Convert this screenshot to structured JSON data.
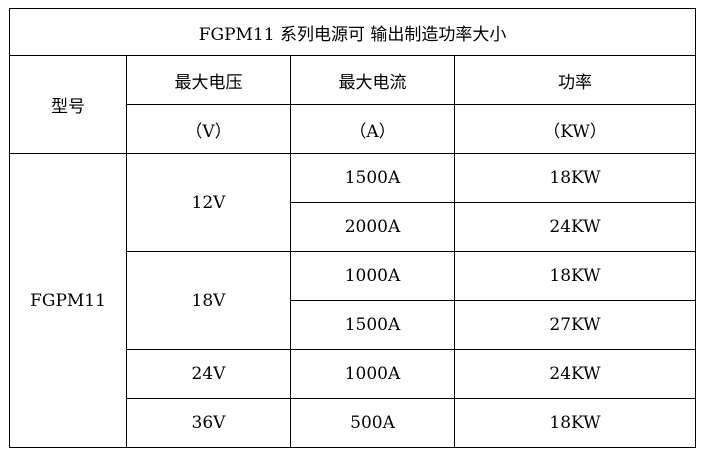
{
  "table": {
    "title": "FGPM11 系列电源可 输出制造功率大小",
    "headers": {
      "model": "型号",
      "voltage": "最大电压",
      "current": "最大电流",
      "power": "功率"
    },
    "units": {
      "voltage": "（V）",
      "current": "（A）",
      "power": "（KW）"
    },
    "model": "FGPM11",
    "rows": [
      {
        "voltage": "12V",
        "current": "1500A",
        "power": "18KW"
      },
      {
        "voltage": "",
        "current": "2000A",
        "power": "24KW"
      },
      {
        "voltage": "18V",
        "current": "1000A",
        "power": "18KW"
      },
      {
        "voltage": "",
        "current": "1500A",
        "power": "27KW"
      },
      {
        "voltage": "24V",
        "current": "1000A",
        "power": "24KW"
      },
      {
        "voltage": "36V",
        "current": "500A",
        "power": "18KW"
      }
    ]
  }
}
